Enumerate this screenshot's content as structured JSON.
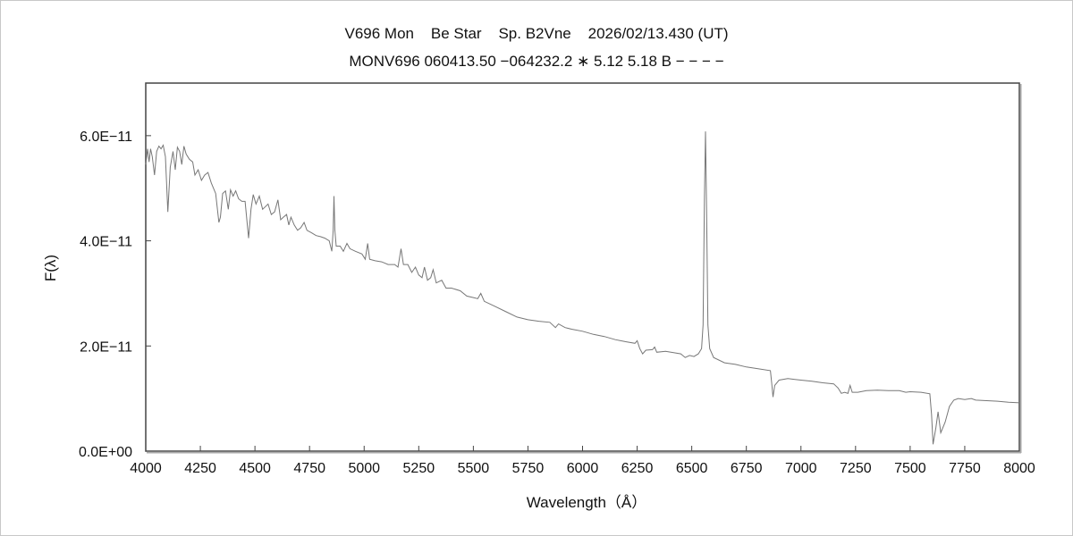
{
  "chart_data": {
    "type": "line",
    "title": "V696 Mon    Be Star    Sp. B2Vne    2026/02/13.430 (UT)",
    "subtitle": "MONV696 060413.50 −064232.2 ∗ 5.12 5.18 B − − − −",
    "xlabel": "Wavelength（Å）",
    "ylabel": "F(λ)",
    "xlim": [
      4000,
      8000
    ],
    "ylim": [
      0,
      7e-11
    ],
    "y_unit": 1e-11,
    "xticks": [
      4000,
      4250,
      4500,
      4750,
      5000,
      5250,
      5500,
      5750,
      6000,
      6250,
      6500,
      6750,
      7000,
      7250,
      7500,
      7750,
      8000
    ],
    "xtick_labels": [
      "4000",
      "4250",
      "4500",
      "4750",
      "5000",
      "5250",
      "5500",
      "5750",
      "6000",
      "6250",
      "6500",
      "6750",
      "7000",
      "7250",
      "7500",
      "7750",
      "8000"
    ],
    "yticks": [
      0,
      2e-11,
      4e-11,
      6e-11
    ],
    "ytick_labels": [
      "0.0E+00",
      "2.0E−11",
      "4.0E−11",
      "6.0E−11"
    ],
    "grid": false,
    "line_color": "#777777",
    "series": [
      {
        "name": "spectrum",
        "points_wavelength_flux_e11": [
          [
            4000,
            5.45
          ],
          [
            4008,
            5.75
          ],
          [
            4015,
            5.5
          ],
          [
            4022,
            5.75
          ],
          [
            4030,
            5.6
          ],
          [
            4040,
            5.25
          ],
          [
            4050,
            5.7
          ],
          [
            4060,
            5.8
          ],
          [
            4070,
            5.75
          ],
          [
            4080,
            5.82
          ],
          [
            4090,
            5.6
          ],
          [
            4101,
            4.55
          ],
          [
            4112,
            5.4
          ],
          [
            4125,
            5.7
          ],
          [
            4135,
            5.35
          ],
          [
            4145,
            5.78
          ],
          [
            4155,
            5.7
          ],
          [
            4165,
            5.45
          ],
          [
            4175,
            5.8
          ],
          [
            4185,
            5.65
          ],
          [
            4200,
            5.55
          ],
          [
            4215,
            5.5
          ],
          [
            4225,
            5.25
          ],
          [
            4240,
            5.35
          ],
          [
            4255,
            5.15
          ],
          [
            4270,
            5.25
          ],
          [
            4285,
            5.3
          ],
          [
            4300,
            5.1
          ],
          [
            4320,
            4.9
          ],
          [
            4335,
            4.35
          ],
          [
            4342,
            4.45
          ],
          [
            4352,
            4.9
          ],
          [
            4365,
            4.95
          ],
          [
            4378,
            4.6
          ],
          [
            4388,
            4.97
          ],
          [
            4400,
            4.85
          ],
          [
            4412,
            4.95
          ],
          [
            4425,
            4.8
          ],
          [
            4440,
            4.75
          ],
          [
            4455,
            4.75
          ],
          [
            4471,
            4.05
          ],
          [
            4482,
            4.6
          ],
          [
            4492,
            4.88
          ],
          [
            4505,
            4.7
          ],
          [
            4520,
            4.85
          ],
          [
            4535,
            4.6
          ],
          [
            4548,
            4.65
          ],
          [
            4560,
            4.7
          ],
          [
            4575,
            4.5
          ],
          [
            4590,
            4.55
          ],
          [
            4605,
            4.78
          ],
          [
            4618,
            4.4
          ],
          [
            4630,
            4.45
          ],
          [
            4645,
            4.5
          ],
          [
            4655,
            4.3
          ],
          [
            4665,
            4.45
          ],
          [
            4680,
            4.3
          ],
          [
            4695,
            4.2
          ],
          [
            4710,
            4.25
          ],
          [
            4725,
            4.35
          ],
          [
            4738,
            4.2
          ],
          [
            4760,
            4.15
          ],
          [
            4780,
            4.1
          ],
          [
            4800,
            4.08
          ],
          [
            4820,
            4.05
          ],
          [
            4840,
            4.0
          ],
          [
            4852,
            3.8
          ],
          [
            4858,
            4.2
          ],
          [
            4862,
            4.85
          ],
          [
            4866,
            4.2
          ],
          [
            4872,
            3.9
          ],
          [
            4890,
            3.9
          ],
          [
            4905,
            3.8
          ],
          [
            4921,
            3.95
          ],
          [
            4935,
            3.85
          ],
          [
            4960,
            3.8
          ],
          [
            4990,
            3.75
          ],
          [
            5005,
            3.65
          ],
          [
            5016,
            3.95
          ],
          [
            5025,
            3.65
          ],
          [
            5050,
            3.62
          ],
          [
            5080,
            3.6
          ],
          [
            5110,
            3.55
          ],
          [
            5140,
            3.55
          ],
          [
            5155,
            3.5
          ],
          [
            5169,
            3.85
          ],
          [
            5180,
            3.55
          ],
          [
            5200,
            3.55
          ],
          [
            5218,
            3.4
          ],
          [
            5235,
            3.5
          ],
          [
            5250,
            3.35
          ],
          [
            5265,
            3.3
          ],
          [
            5276,
            3.5
          ],
          [
            5290,
            3.25
          ],
          [
            5305,
            3.3
          ],
          [
            5316,
            3.45
          ],
          [
            5330,
            3.2
          ],
          [
            5355,
            3.25
          ],
          [
            5375,
            3.1
          ],
          [
            5400,
            3.1
          ],
          [
            5440,
            3.05
          ],
          [
            5470,
            2.95
          ],
          [
            5500,
            2.92
          ],
          [
            5520,
            2.9
          ],
          [
            5534,
            3.0
          ],
          [
            5550,
            2.85
          ],
          [
            5600,
            2.75
          ],
          [
            5650,
            2.65
          ],
          [
            5700,
            2.55
          ],
          [
            5750,
            2.5
          ],
          [
            5800,
            2.47
          ],
          [
            5850,
            2.45
          ],
          [
            5876,
            2.35
          ],
          [
            5890,
            2.42
          ],
          [
            5920,
            2.35
          ],
          [
            5950,
            2.32
          ],
          [
            6000,
            2.28
          ],
          [
            6050,
            2.22
          ],
          [
            6100,
            2.18
          ],
          [
            6150,
            2.12
          ],
          [
            6200,
            2.08
          ],
          [
            6240,
            2.05
          ],
          [
            6250,
            2.1
          ],
          [
            6262,
            1.95
          ],
          [
            6275,
            1.85
          ],
          [
            6290,
            1.92
          ],
          [
            6320,
            1.93
          ],
          [
            6330,
            1.98
          ],
          [
            6340,
            1.88
          ],
          [
            6380,
            1.9
          ],
          [
            6420,
            1.87
          ],
          [
            6450,
            1.85
          ],
          [
            6470,
            1.78
          ],
          [
            6490,
            1.82
          ],
          [
            6510,
            1.8
          ],
          [
            6530,
            1.85
          ],
          [
            6545,
            1.95
          ],
          [
            6552,
            2.4
          ],
          [
            6558,
            4.8
          ],
          [
            6563,
            6.08
          ],
          [
            6568,
            4.6
          ],
          [
            6574,
            2.4
          ],
          [
            6582,
            1.95
          ],
          [
            6600,
            1.78
          ],
          [
            6650,
            1.68
          ],
          [
            6700,
            1.65
          ],
          [
            6750,
            1.6
          ],
          [
            6800,
            1.57
          ],
          [
            6860,
            1.53
          ],
          [
            6866,
            1.3
          ],
          [
            6872,
            1.03
          ],
          [
            6880,
            1.25
          ],
          [
            6900,
            1.35
          ],
          [
            6940,
            1.38
          ],
          [
            7000,
            1.35
          ],
          [
            7050,
            1.33
          ],
          [
            7100,
            1.3
          ],
          [
            7150,
            1.28
          ],
          [
            7170,
            1.2
          ],
          [
            7185,
            1.1
          ],
          [
            7200,
            1.12
          ],
          [
            7215,
            1.1
          ],
          [
            7225,
            1.25
          ],
          [
            7235,
            1.12
          ],
          [
            7260,
            1.12
          ],
          [
            7300,
            1.15
          ],
          [
            7350,
            1.16
          ],
          [
            7400,
            1.15
          ],
          [
            7450,
            1.15
          ],
          [
            7480,
            1.12
          ],
          [
            7500,
            1.13
          ],
          [
            7550,
            1.12
          ],
          [
            7590,
            1.09
          ],
          [
            7598,
            0.7
          ],
          [
            7605,
            0.13
          ],
          [
            7618,
            0.45
          ],
          [
            7628,
            0.75
          ],
          [
            7640,
            0.35
          ],
          [
            7660,
            0.55
          ],
          [
            7680,
            0.85
          ],
          [
            7700,
            0.97
          ],
          [
            7720,
            1.0
          ],
          [
            7750,
            0.98
          ],
          [
            7780,
            1.0
          ],
          [
            7800,
            0.97
          ],
          [
            7850,
            0.96
          ],
          [
            7900,
            0.95
          ],
          [
            7950,
            0.93
          ],
          [
            8000,
            0.92
          ]
        ]
      }
    ]
  }
}
